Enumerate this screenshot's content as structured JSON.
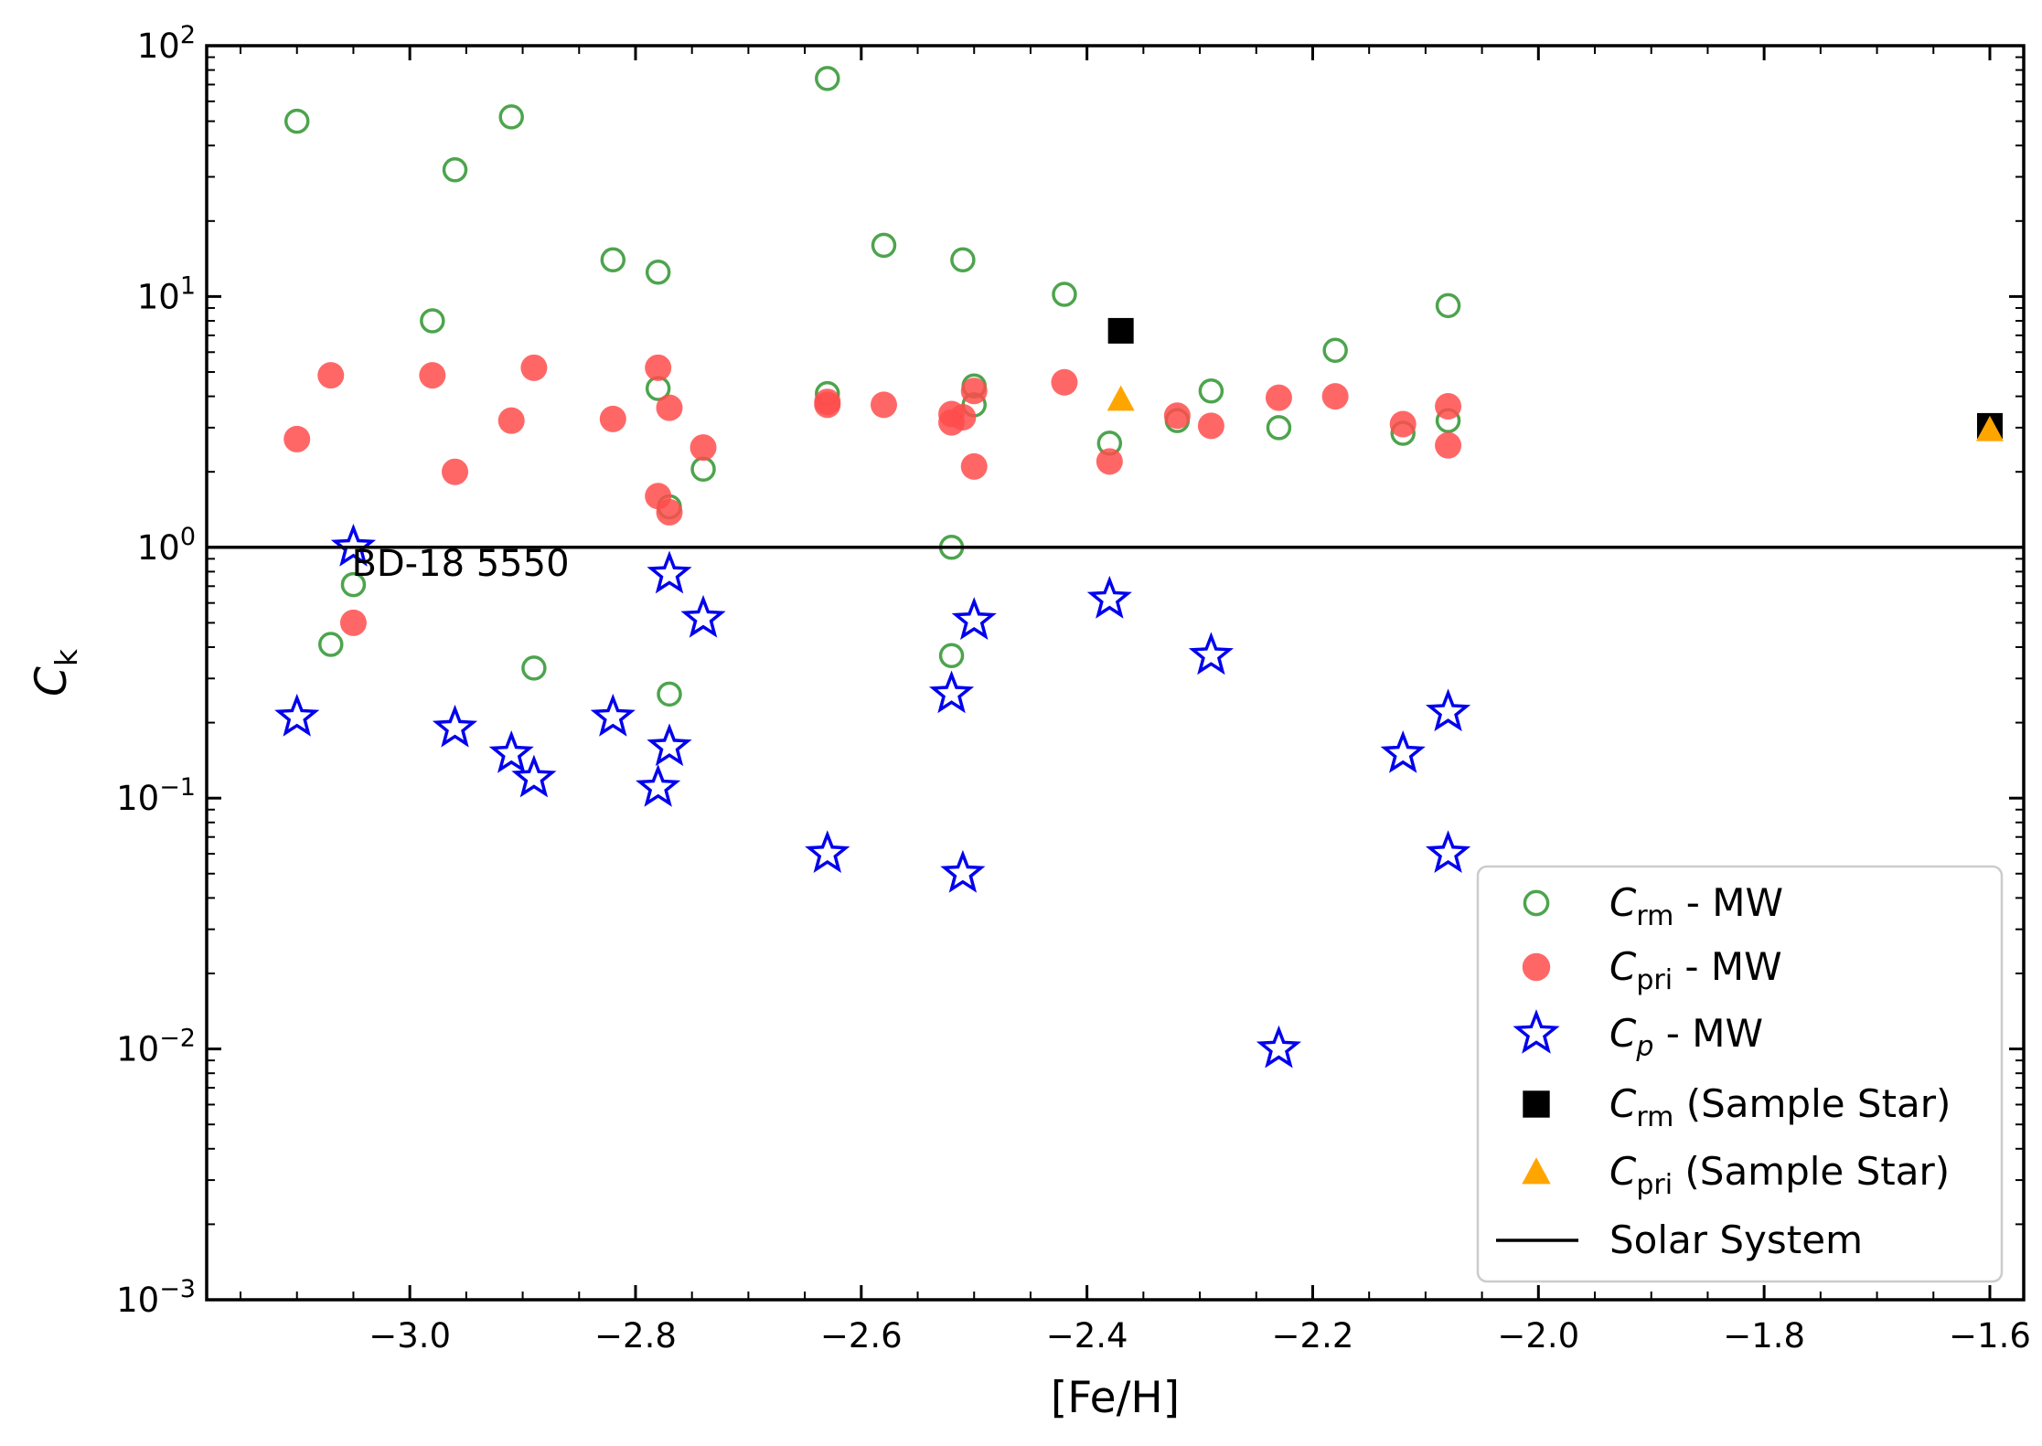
{
  "chart_data": {
    "type": "scatter",
    "xlabel": "[Fe/H]",
    "ylabel": "C",
    "ylabel_sub": "k",
    "xlim": [
      -3.18,
      -1.57
    ],
    "ylim": [
      0.001,
      100
    ],
    "yscale": "log",
    "x_ticks": [
      -3.0,
      -2.8,
      -2.6,
      -2.4,
      -2.2,
      -2.0,
      -1.8,
      -1.6
    ],
    "x_tick_labels": [
      "−3.0",
      "−2.8",
      "−2.6",
      "−2.4",
      "−2.2",
      "−2.0",
      "−1.8",
      "−1.6"
    ],
    "y_ticks": [
      0.001,
      0.01,
      0.1,
      1,
      10,
      100
    ],
    "y_tick_labels": [
      {
        "base": "10",
        "exp": "−3"
      },
      {
        "base": "10",
        "exp": "−2"
      },
      {
        "base": "10",
        "exp": "−1"
      },
      {
        "base": "10",
        "exp": "0"
      },
      {
        "base": "10",
        "exp": "1"
      },
      {
        "base": "10",
        "exp": "2"
      }
    ],
    "hline": {
      "y": 1,
      "name": "Solar System"
    },
    "annotations": [
      {
        "text": "BD-18 5550",
        "x": -3.05,
        "y": 0.85
      }
    ],
    "series": [
      {
        "name": "C_rm - MW",
        "label_main": "C",
        "label_sub": "rm",
        "label_rest": " - MW",
        "marker": "open-circle",
        "color": "#3a9a3a",
        "points": [
          [
            -3.1,
            50
          ],
          [
            -3.07,
            0.41
          ],
          [
            -3.05,
            0.71
          ],
          [
            -2.98,
            8.0
          ],
          [
            -2.96,
            32
          ],
          [
            -2.91,
            52
          ],
          [
            -2.89,
            0.33
          ],
          [
            -2.82,
            14
          ],
          [
            -2.78,
            12.5
          ],
          [
            -2.78,
            4.3
          ],
          [
            -2.77,
            1.45
          ],
          [
            -2.77,
            0.26
          ],
          [
            -2.74,
            2.05
          ],
          [
            -2.63,
            74
          ],
          [
            -2.63,
            4.1
          ],
          [
            -2.58,
            16
          ],
          [
            -2.52,
            1.0
          ],
          [
            -2.52,
            0.37
          ],
          [
            -2.51,
            14
          ],
          [
            -2.5,
            4.4
          ],
          [
            -2.5,
            3.7
          ],
          [
            -2.42,
            10.2
          ],
          [
            -2.38,
            2.6
          ],
          [
            -2.32,
            3.2
          ],
          [
            -2.29,
            4.2
          ],
          [
            -2.23,
            3.0
          ],
          [
            -2.18,
            6.1
          ],
          [
            -2.12,
            2.85
          ],
          [
            -2.08,
            9.2
          ],
          [
            -2.08,
            3.2
          ]
        ]
      },
      {
        "name": "C_pri - MW",
        "label_main": "C",
        "label_sub": "pri",
        "label_rest": " - MW",
        "marker": "filled-circle",
        "color": "#ff4c4c",
        "points": [
          [
            -3.1,
            2.7
          ],
          [
            -3.07,
            4.85
          ],
          [
            -3.05,
            0.5
          ],
          [
            -2.98,
            4.85
          ],
          [
            -2.96,
            2.0
          ],
          [
            -2.91,
            3.2
          ],
          [
            -2.89,
            5.2
          ],
          [
            -2.82,
            3.25
          ],
          [
            -2.78,
            5.2
          ],
          [
            -2.78,
            1.6
          ],
          [
            -2.77,
            3.6
          ],
          [
            -2.77,
            1.38
          ],
          [
            -2.74,
            2.5
          ],
          [
            -2.63,
            3.8
          ],
          [
            -2.63,
            3.7
          ],
          [
            -2.58,
            3.7
          ],
          [
            -2.52,
            3.4
          ],
          [
            -2.52,
            3.15
          ],
          [
            -2.51,
            3.3
          ],
          [
            -2.5,
            4.2
          ],
          [
            -2.5,
            2.1
          ],
          [
            -2.42,
            4.55
          ],
          [
            -2.38,
            2.2
          ],
          [
            -2.32,
            3.35
          ],
          [
            -2.29,
            3.05
          ],
          [
            -2.23,
            3.95
          ],
          [
            -2.18,
            4.0
          ],
          [
            -2.12,
            3.1
          ],
          [
            -2.08,
            3.65
          ],
          [
            -2.08,
            2.55
          ]
        ]
      },
      {
        "name": "C_p - MW",
        "label_main": "C",
        "label_sub": "p",
        "label_sub_italic": true,
        "label_rest": " - MW",
        "marker": "open-star",
        "color": "#0000ee",
        "points": [
          [
            -3.1,
            0.21
          ],
          [
            -3.05,
            1.0
          ],
          [
            -2.96,
            0.19
          ],
          [
            -2.91,
            0.15
          ],
          [
            -2.89,
            0.12
          ],
          [
            -2.82,
            0.21
          ],
          [
            -2.78,
            0.11
          ],
          [
            -2.77,
            0.78
          ],
          [
            -2.77,
            0.16
          ],
          [
            -2.74,
            0.52
          ],
          [
            -2.63,
            0.06
          ],
          [
            -2.52,
            0.26
          ],
          [
            -2.51,
            0.05
          ],
          [
            -2.5,
            0.51
          ],
          [
            -2.38,
            0.62
          ],
          [
            -2.29,
            0.37
          ],
          [
            -2.23,
            0.01
          ],
          [
            -2.12,
            0.15
          ],
          [
            -2.08,
            0.22
          ],
          [
            -2.08,
            0.06
          ]
        ]
      },
      {
        "name": "C_rm (Sample Star)",
        "label_main": "C",
        "label_sub": "rm",
        "label_rest": " (Sample Star)",
        "marker": "square",
        "color": "#000000",
        "points": [
          [
            -2.37,
            7.3
          ],
          [
            -1.6,
            3.05
          ]
        ]
      },
      {
        "name": "C_pri (Sample Star)",
        "label_main": "C",
        "label_sub": "pri",
        "label_rest": " (Sample Star)",
        "marker": "triangle",
        "color": "#ffa500",
        "points": [
          [
            -2.37,
            3.9
          ],
          [
            -1.6,
            2.95
          ]
        ]
      }
    ],
    "legend": {
      "location": "lower-right",
      "line_entry": {
        "label": "Solar System",
        "color": "#000000"
      }
    }
  }
}
